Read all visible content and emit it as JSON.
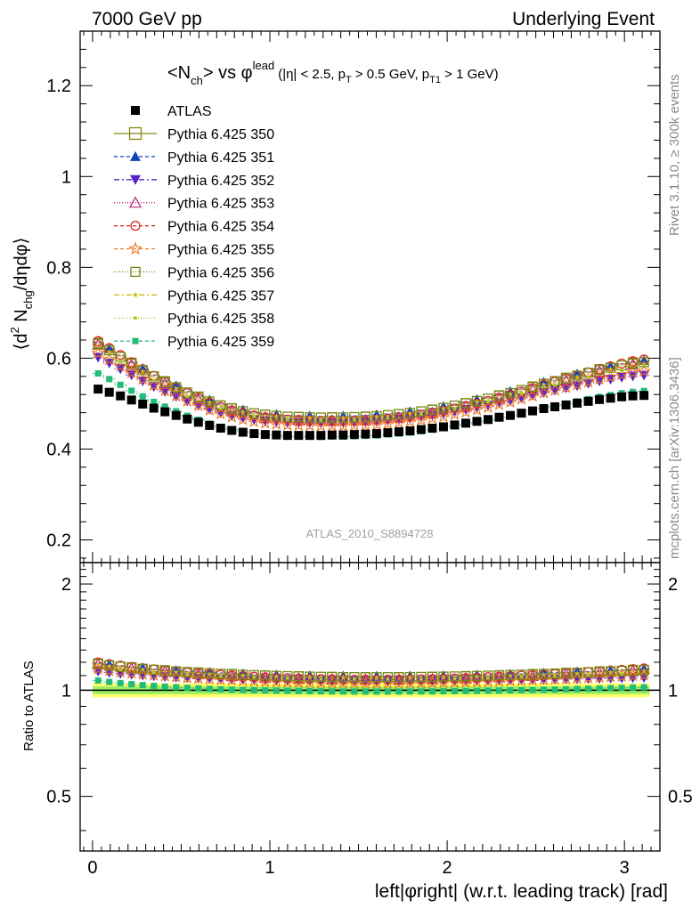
{
  "header": {
    "left": "7000 GeV pp",
    "right": "Underlying Event"
  },
  "side_labels": {
    "rivet": "Rivet 3.1.10, ≥ 300k events",
    "mcplots": "mcplots.cern.ch [arXiv:1306.3436]"
  },
  "chart_data": {
    "type": "scatter",
    "title_main": "<N",
    "title_main_sub": "ch",
    "title_vs": "> vs φ",
    "title_vs_sup": "lead",
    "title_cuts": "(|η| < 2.5, p",
    "title_cuts_sub1": "T",
    "title_cuts_mid": " > 0.5 GeV, p",
    "title_cuts_sub2": "T1",
    "title_cuts_end": " > 1 GeV)",
    "ylabel_pre": "⟨d",
    "ylabel_sup": "2",
    "ylabel_mid": " N",
    "ylabel_sub": "chg",
    "ylabel_post": "/dηdφ⟩",
    "ratio_ylabel": "Ratio to ATLAS",
    "xlabel": "left|φright| (w.r.t. leading track) [rad]",
    "watermark": "ATLAS_2010_S8894728",
    "xlim": [
      -0.07,
      3.2
    ],
    "ylim": [
      0.15,
      1.32
    ],
    "ratio_ylim": [
      0.35,
      2.3
    ],
    "x_ticks": [
      0,
      1,
      2,
      3
    ],
    "x_tick_labels": [
      "0",
      "1",
      "2",
      "3"
    ],
    "y_ticks": [
      0.2,
      0.4,
      0.6,
      0.8,
      1.0,
      1.2
    ],
    "y_tick_labels": [
      "0.2",
      "0.4",
      "0.6",
      "0.8",
      "1",
      "1.2"
    ],
    "ratio_y_ticks": [
      0.5,
      1,
      2
    ],
    "ratio_y_tick_labels": [
      "0.5",
      "1",
      "2"
    ],
    "legend_position": "top-left",
    "nbins": 50,
    "xmax": 3.14159,
    "atlas": {
      "name": "ATLAS",
      "color": "#000000",
      "values": [
        0.532,
        0.525,
        0.517,
        0.508,
        0.499,
        0.49,
        0.482,
        0.474,
        0.466,
        0.459,
        0.452,
        0.446,
        0.441,
        0.437,
        0.434,
        0.432,
        0.431,
        0.43,
        0.43,
        0.43,
        0.43,
        0.431,
        0.431,
        0.432,
        0.433,
        0.434,
        0.436,
        0.438,
        0.44,
        0.443,
        0.446,
        0.449,
        0.453,
        0.457,
        0.461,
        0.465,
        0.47,
        0.474,
        0.479,
        0.484,
        0.489,
        0.493,
        0.497,
        0.501,
        0.505,
        0.509,
        0.512,
        0.515,
        0.517,
        0.518
      ]
    },
    "series": [
      {
        "name": "Pythia 6.425 350",
        "color": "#888811",
        "marker": "open-square",
        "dash": "",
        "ratio_offset": 0.148,
        "slope": 0.06,
        "stride": 3
      },
      {
        "name": "Pythia 6.425 351",
        "color": "#1144bb",
        "marker": "filled-triangle-up",
        "dash": "4,3",
        "ratio_offset": 0.15,
        "slope": 0.055,
        "stride": 3
      },
      {
        "name": "Pythia 6.425 352",
        "color": "#5522cc",
        "marker": "filled-triangle-down",
        "dash": "6,3,2,3",
        "ratio_offset": 0.087,
        "slope": 0.025,
        "stride": 1
      },
      {
        "name": "Pythia 6.425 353",
        "color": "#bb2277",
        "marker": "open-triangle-up",
        "dash": "1,2",
        "ratio_offset": 0.14,
        "slope": 0.07,
        "stride": 3
      },
      {
        "name": "Pythia 6.425 354",
        "color": "#dd2222",
        "marker": "open-circle",
        "dash": "4,3",
        "ratio_offset": 0.155,
        "slope": 0.085,
        "stride": 1
      },
      {
        "name": "Pythia 6.425 355",
        "color": "#ee7722",
        "marker": "open-star",
        "dash": "4,3",
        "ratio_offset": 0.105,
        "slope": 0.06,
        "stride": 1
      },
      {
        "name": "Pythia 6.425 356",
        "color": "#778811",
        "marker": "open-square",
        "dash": "1,2",
        "ratio_offset": 0.143,
        "slope": 0.055,
        "stride": 1
      },
      {
        "name": "Pythia 6.425 357",
        "color": "#ccbb11",
        "marker": "star-small",
        "dash": "6,3,2,3",
        "ratio_offset": 0.135,
        "slope": 0.05,
        "stride": 3
      },
      {
        "name": "Pythia 6.425 358",
        "color": "#aacc22",
        "marker": "dot",
        "dash": "1,2",
        "ratio_offset": 0.12,
        "slope": 0.045,
        "stride": 3
      },
      {
        "name": "Pythia 6.425 359",
        "color": "#22bb77",
        "marker": "filled-square-small",
        "dash": "4,3",
        "ratio_offset": 0.02,
        "slope": 0.03,
        "stride": 1
      }
    ],
    "ratio_band_color": "#ffff66",
    "ratio_band_inner_color": "#99ee66"
  }
}
